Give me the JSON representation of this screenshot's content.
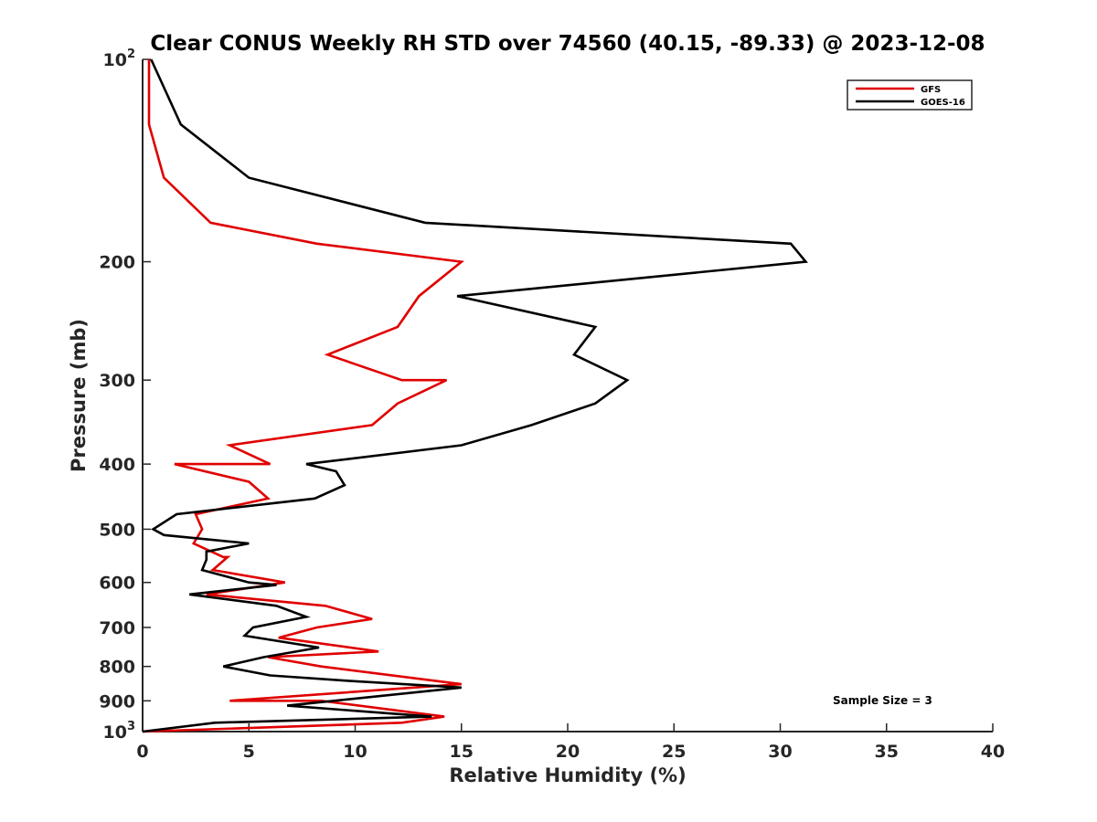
{
  "chart_data": {
    "type": "line",
    "title": "Clear CONUS Weekly RH STD over 74560 (40.15, -89.33) @ 2023-12-08",
    "xlabel": "Relative Humidity (%)",
    "ylabel": "Pressure (mb)",
    "xlim": [
      0,
      40
    ],
    "ylim": [
      100,
      1000
    ],
    "y_scale": "log",
    "y_reversed": true,
    "grid": false,
    "legend_position": "top-right",
    "x_ticks": [
      0,
      5,
      10,
      15,
      20,
      25,
      30,
      35,
      40
    ],
    "x_tick_labels": [
      "0",
      "5",
      "10",
      "15",
      "20",
      "25",
      "30",
      "35",
      "40"
    ],
    "y_ticks": [
      100,
      200,
      300,
      400,
      500,
      600,
      700,
      800,
      900,
      1000
    ],
    "y_tick_labels": [
      {
        "base": "10",
        "sup": "2"
      },
      {
        "base": "200"
      },
      {
        "base": "300"
      },
      {
        "base": "400"
      },
      {
        "base": "500"
      },
      {
        "base": "600"
      },
      {
        "base": "700"
      },
      {
        "base": "800"
      },
      {
        "base": "900"
      },
      {
        "base": "10",
        "sup": "3"
      }
    ],
    "annotation": "Sample Size = 3",
    "series": [
      {
        "name": "GFS",
        "color": "#e00000",
        "points": [
          [
            0.3,
            100
          ],
          [
            0.3,
            125
          ],
          [
            1.0,
            150
          ],
          [
            3.2,
            175
          ],
          [
            8.2,
            188
          ],
          [
            15.0,
            200
          ],
          [
            13.0,
            225
          ],
          [
            12.0,
            250
          ],
          [
            8.7,
            275
          ],
          [
            12.2,
            300
          ],
          [
            14.3,
            300
          ],
          [
            12.0,
            325
          ],
          [
            10.8,
            350
          ],
          [
            4.1,
            375
          ],
          [
            6.0,
            400
          ],
          [
            1.5,
            400
          ],
          [
            5.0,
            425
          ],
          [
            5.9,
            450
          ],
          [
            2.5,
            475
          ],
          [
            2.8,
            500
          ],
          [
            2.4,
            525
          ],
          [
            3.8,
            550
          ],
          [
            4.0,
            550
          ],
          [
            3.3,
            575
          ],
          [
            6.7,
            600
          ],
          [
            3.0,
            625
          ],
          [
            8.6,
            650
          ],
          [
            10.8,
            680
          ],
          [
            8.2,
            700
          ],
          [
            6.4,
            725
          ],
          [
            11.1,
            760
          ],
          [
            5.9,
            775
          ],
          [
            8.4,
            800
          ],
          [
            15.0,
            850
          ],
          [
            4.1,
            900
          ],
          [
            8.4,
            900
          ],
          [
            14.2,
            950
          ],
          [
            12.2,
            970
          ],
          [
            0.0,
            1000
          ]
        ]
      },
      {
        "name": "GOES-16",
        "color": "#000000",
        "points": [
          [
            0.4,
            100
          ],
          [
            1.8,
            125
          ],
          [
            5.0,
            150
          ],
          [
            13.3,
            175
          ],
          [
            30.5,
            188
          ],
          [
            31.2,
            200
          ],
          [
            14.8,
            225
          ],
          [
            21.3,
            250
          ],
          [
            20.3,
            275
          ],
          [
            22.8,
            300
          ],
          [
            21.3,
            325
          ],
          [
            18.3,
            350
          ],
          [
            15.0,
            375
          ],
          [
            7.7,
            400
          ],
          [
            9.1,
            410
          ],
          [
            9.5,
            430
          ],
          [
            8.1,
            450
          ],
          [
            1.6,
            475
          ],
          [
            0.5,
            500
          ],
          [
            1.0,
            510
          ],
          [
            5.0,
            525
          ],
          [
            3.0,
            540
          ],
          [
            3.0,
            555
          ],
          [
            2.8,
            575
          ],
          [
            5.0,
            600
          ],
          [
            6.3,
            605
          ],
          [
            2.2,
            625
          ],
          [
            6.3,
            650
          ],
          [
            7.7,
            675
          ],
          [
            5.2,
            700
          ],
          [
            4.8,
            720
          ],
          [
            8.3,
            750
          ],
          [
            5.7,
            775
          ],
          [
            3.8,
            800
          ],
          [
            6.0,
            825
          ],
          [
            9.6,
            840
          ],
          [
            15.0,
            860
          ],
          [
            9.0,
            900
          ],
          [
            6.8,
            915
          ],
          [
            13.6,
            950
          ],
          [
            3.4,
            970
          ],
          [
            0.0,
            1000
          ]
        ]
      }
    ]
  }
}
